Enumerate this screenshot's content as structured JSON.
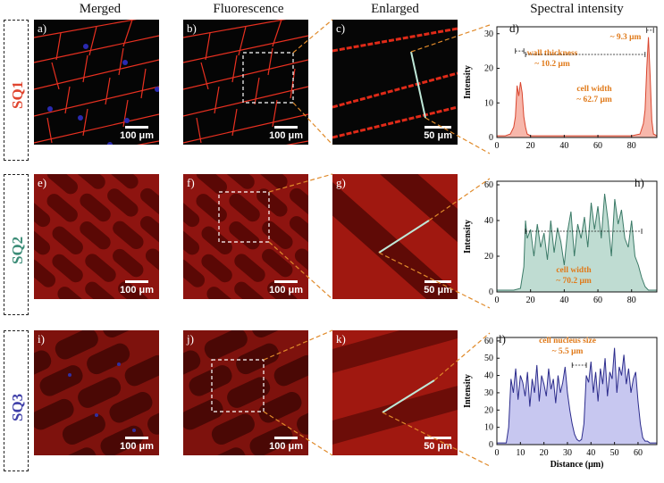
{
  "headers": {
    "merged": "Merged",
    "fluorescence": "Fluorescence",
    "enlarged": "Enlarged",
    "spectral": "Spectral intensity"
  },
  "rows": [
    {
      "label": "SQ1",
      "color": "#e0452f",
      "panels": [
        "a)",
        "b)",
        "c)",
        "d)"
      ],
      "scales": [
        "100 μm",
        "100 μm",
        "50 μm"
      ]
    },
    {
      "label": "SQ2",
      "color": "#3b8c77",
      "panels": [
        "e)",
        "f)",
        "g)",
        "h)"
      ],
      "scales": [
        "100 μm",
        "100 μm",
        "50 μm"
      ]
    },
    {
      "label": "SQ3",
      "color": "#3f3fa8",
      "panels": [
        "i)",
        "j)",
        "k)",
        "l)"
      ],
      "scales": [
        "100 μm",
        "100 μm",
        "50 μm"
      ]
    }
  ],
  "chart_data": [
    {
      "type": "area",
      "panel": "d)",
      "xlabel": "",
      "ylabel": "Intensity",
      "xlim": [
        0,
        95
      ],
      "ylim": [
        0,
        32
      ],
      "xticks": [
        0,
        20,
        40,
        60,
        80
      ],
      "yticks": [
        0,
        10,
        20,
        30
      ],
      "line_color": "#d9452e",
      "fill_color": "#f7b7ab",
      "x": [
        0,
        5,
        8,
        10,
        11,
        12,
        13,
        14,
        15,
        16,
        17,
        18,
        20,
        25,
        30,
        35,
        40,
        45,
        50,
        55,
        60,
        65,
        70,
        75,
        80,
        85,
        87,
        88,
        89,
        90,
        91,
        92,
        93,
        95
      ],
      "y": [
        0.5,
        0.5,
        1,
        3,
        6,
        15,
        12,
        16,
        13,
        6,
        3,
        1,
        0.5,
        0.5,
        0.5,
        0.5,
        0.5,
        0.5,
        0.5,
        0.5,
        0.5,
        0.5,
        0.5,
        0.5,
        0.5,
        1,
        4,
        8,
        20,
        29,
        18,
        5,
        1,
        0.5
      ],
      "annotations": [
        {
          "text": "wall thickness",
          "text2": "~ 10.2 μm"
        },
        {
          "text": "~ 9.3 μm"
        },
        {
          "text": "cell width",
          "text2": "~ 62.7 μm"
        }
      ]
    },
    {
      "type": "area",
      "panel": "h)",
      "xlabel": "",
      "ylabel": "Intensity",
      "xlim": [
        0,
        95
      ],
      "ylim": [
        0,
        62
      ],
      "xticks": [
        0,
        20,
        40,
        60,
        80
      ],
      "yticks": [
        0,
        20,
        40,
        60
      ],
      "line_color": "#3b7a67",
      "fill_color": "#bfdcd2",
      "x": [
        0,
        10,
        14,
        16,
        17,
        18,
        20,
        22,
        24,
        26,
        28,
        30,
        32,
        34,
        36,
        38,
        40,
        42,
        44,
        46,
        48,
        50,
        52,
        54,
        56,
        58,
        60,
        62,
        64,
        66,
        68,
        70,
        72,
        74,
        76,
        78,
        80,
        82,
        84,
        86,
        88,
        90,
        95
      ],
      "y": [
        1,
        1,
        2,
        14,
        40,
        30,
        35,
        20,
        38,
        25,
        33,
        18,
        40,
        22,
        36,
        28,
        15,
        34,
        45,
        20,
        38,
        30,
        42,
        25,
        50,
        35,
        48,
        30,
        55,
        40,
        20,
        52,
        38,
        46,
        30,
        25,
        40,
        20,
        15,
        8,
        3,
        1,
        1
      ],
      "annotations": [
        {
          "text": "cell width",
          "text2": "~ 70.2 μm"
        }
      ]
    },
    {
      "type": "area",
      "panel": "l)",
      "xlabel": "Distance (μm)",
      "ylabel": "Intensity",
      "xlim": [
        0,
        68
      ],
      "ylim": [
        0,
        62
      ],
      "xticks": [
        0,
        10,
        20,
        30,
        40,
        50,
        60
      ],
      "yticks": [
        0,
        10,
        20,
        30,
        40,
        50,
        60
      ],
      "line_color": "#2c2c8c",
      "fill_color": "#c7c7f0",
      "x": [
        0,
        4,
        5,
        6,
        7,
        8,
        9,
        10,
        11,
        12,
        13,
        14,
        15,
        16,
        17,
        18,
        19,
        20,
        21,
        22,
        23,
        24,
        25,
        26,
        27,
        28,
        29,
        30,
        31,
        32,
        33,
        34,
        35,
        36,
        37,
        38,
        39,
        40,
        41,
        42,
        43,
        44,
        45,
        46,
        47,
        48,
        49,
        50,
        51,
        52,
        53,
        54,
        55,
        56,
        57,
        58,
        59,
        60,
        61,
        62,
        63,
        64,
        65,
        68
      ],
      "y": [
        1,
        1,
        10,
        38,
        30,
        44,
        26,
        40,
        36,
        28,
        42,
        22,
        38,
        30,
        46,
        25,
        40,
        35,
        28,
        44,
        32,
        38,
        24,
        40,
        30,
        36,
        45,
        30,
        20,
        12,
        6,
        3,
        2,
        3,
        12,
        40,
        36,
        48,
        30,
        42,
        25,
        44,
        35,
        50,
        28,
        42,
        38,
        56,
        30,
        45,
        40,
        52,
        35,
        44,
        30,
        38,
        42,
        25,
        12,
        4,
        2,
        2,
        1,
        1
      ],
      "annotations": [
        {
          "text": "cell nucleus size",
          "text2": "~ 5.5 μm"
        }
      ]
    }
  ]
}
